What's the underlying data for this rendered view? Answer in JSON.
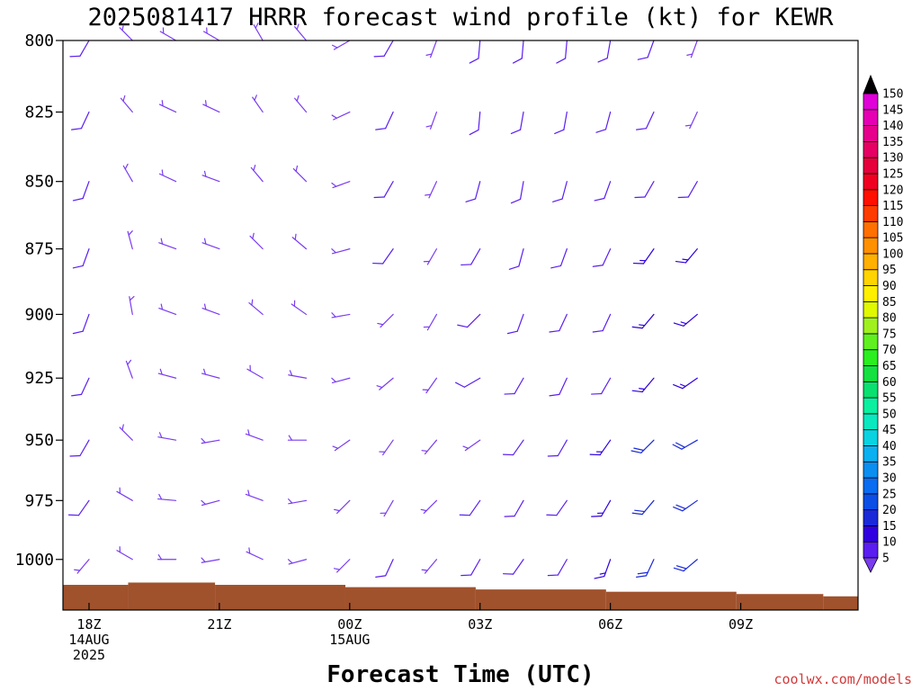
{
  "chart_data": {
    "type": "wind_barb_profile",
    "title": "2025081417 HRRR forecast wind profile (kt) for KEWR",
    "xlabel": "Forecast Time (UTC)",
    "ylabel": "",
    "credit": "coolwx.com/models",
    "y_axis": {
      "unit": "hPa",
      "ticks": [
        800,
        825,
        850,
        875,
        900,
        925,
        950,
        975,
        1000
      ],
      "range": [
        800,
        1022
      ]
    },
    "x_axis": {
      "unit": "hours from 18Z 14AUG 2025",
      "range": [
        -0.6,
        17.7
      ],
      "ticks": [
        {
          "hour": 0,
          "lines": [
            "18Z",
            "14AUG",
            "2025"
          ]
        },
        {
          "hour": 3,
          "lines": [
            "21Z"
          ]
        },
        {
          "hour": 6,
          "lines": [
            "00Z",
            "15AUG"
          ]
        },
        {
          "hour": 9,
          "lines": [
            "03Z"
          ]
        },
        {
          "hour": 12,
          "lines": [
            "06Z"
          ]
        },
        {
          "hour": 15,
          "lines": [
            "09Z"
          ]
        }
      ]
    },
    "colorbar": {
      "levels": [
        5,
        10,
        15,
        20,
        25,
        30,
        35,
        40,
        45,
        50,
        55,
        60,
        65,
        70,
        75,
        80,
        85,
        90,
        95,
        100,
        105,
        110,
        115,
        120,
        125,
        130,
        135,
        140,
        145,
        150
      ],
      "colors": [
        "#7a3cf0",
        "#5a1ef0",
        "#3000e0",
        "#1a2ad8",
        "#0a4ee6",
        "#0a6cf0",
        "#0a8ef0",
        "#0ab0f0",
        "#0ad2e0",
        "#0ae8c0",
        "#0af0a0",
        "#0ae070",
        "#14e040",
        "#2aee20",
        "#60f020",
        "#a0f020",
        "#e0f800",
        "#fff000",
        "#ffd400",
        "#ffb000",
        "#ff9000",
        "#ff7000",
        "#ff3c00",
        "#ff1000",
        "#f00020",
        "#e6003c",
        "#e60064",
        "#e6008c",
        "#e600b4",
        "#e000d8"
      ],
      "top_arrow_color": "#000000"
    },
    "columns": [
      {
        "hour": 0,
        "winds": [
          [
            800,
            210,
            10
          ],
          [
            825,
            205,
            10
          ],
          [
            850,
            200,
            10
          ],
          [
            875,
            200,
            10
          ],
          [
            900,
            200,
            10
          ],
          [
            925,
            205,
            10
          ],
          [
            950,
            210,
            10
          ],
          [
            975,
            215,
            10
          ],
          [
            1000,
            220,
            5
          ]
        ]
      },
      {
        "hour": 1,
        "winds": [
          [
            800,
            315,
            5
          ],
          [
            825,
            320,
            5
          ],
          [
            850,
            330,
            5
          ],
          [
            875,
            345,
            5
          ],
          [
            900,
            350,
            5
          ],
          [
            925,
            340,
            5
          ],
          [
            950,
            315,
            5
          ],
          [
            975,
            300,
            5
          ],
          [
            1000,
            300,
            5
          ]
        ]
      },
      {
        "hour": 2,
        "winds": [
          [
            800,
            300,
            5
          ],
          [
            825,
            295,
            5
          ],
          [
            850,
            295,
            5
          ],
          [
            875,
            290,
            5
          ],
          [
            900,
            290,
            5
          ],
          [
            925,
            285,
            5
          ],
          [
            950,
            280,
            5
          ],
          [
            975,
            275,
            5
          ],
          [
            1000,
            270,
            5
          ]
        ]
      },
      {
        "hour": 3,
        "winds": [
          [
            800,
            300,
            5
          ],
          [
            825,
            295,
            5
          ],
          [
            850,
            290,
            5
          ],
          [
            875,
            290,
            5
          ],
          [
            900,
            290,
            5
          ],
          [
            925,
            285,
            5
          ],
          [
            950,
            260,
            5
          ],
          [
            975,
            255,
            5
          ],
          [
            1000,
            260,
            5
          ]
        ]
      },
      {
        "hour": 4,
        "winds": [
          [
            800,
            330,
            5
          ],
          [
            825,
            325,
            5
          ],
          [
            850,
            320,
            5
          ],
          [
            875,
            315,
            5
          ],
          [
            900,
            310,
            5
          ],
          [
            925,
            300,
            5
          ],
          [
            950,
            290,
            5
          ],
          [
            975,
            290,
            5
          ],
          [
            1000,
            295,
            5
          ]
        ]
      },
      {
        "hour": 5,
        "winds": [
          [
            800,
            320,
            5
          ],
          [
            825,
            320,
            5
          ],
          [
            850,
            315,
            5
          ],
          [
            875,
            310,
            5
          ],
          [
            900,
            305,
            5
          ],
          [
            925,
            280,
            5
          ],
          [
            950,
            270,
            5
          ],
          [
            975,
            260,
            5
          ],
          [
            1000,
            255,
            5
          ]
        ]
      },
      {
        "hour": 6,
        "winds": [
          [
            800,
            240,
            5
          ],
          [
            825,
            245,
            5
          ],
          [
            850,
            250,
            5
          ],
          [
            875,
            255,
            5
          ],
          [
            900,
            260,
            5
          ],
          [
            925,
            255,
            5
          ],
          [
            950,
            235,
            5
          ],
          [
            975,
            225,
            5
          ],
          [
            1000,
            225,
            5
          ]
        ]
      },
      {
        "hour": 7,
        "winds": [
          [
            800,
            210,
            10
          ],
          [
            825,
            205,
            10
          ],
          [
            850,
            210,
            10
          ],
          [
            875,
            215,
            10
          ],
          [
            900,
            225,
            5
          ],
          [
            925,
            230,
            5
          ],
          [
            950,
            215,
            5
          ],
          [
            975,
            210,
            5
          ],
          [
            1000,
            205,
            10
          ]
        ]
      },
      {
        "hour": 8,
        "winds": [
          [
            800,
            200,
            5
          ],
          [
            825,
            200,
            5
          ],
          [
            850,
            205,
            5
          ],
          [
            875,
            210,
            5
          ],
          [
            900,
            210,
            5
          ],
          [
            925,
            215,
            5
          ],
          [
            950,
            220,
            5
          ],
          [
            975,
            225,
            5
          ],
          [
            1000,
            220,
            5
          ]
        ]
      },
      {
        "hour": 9,
        "winds": [
          [
            800,
            185,
            10
          ],
          [
            825,
            185,
            10
          ],
          [
            850,
            195,
            10
          ],
          [
            875,
            210,
            10
          ],
          [
            900,
            225,
            10
          ],
          [
            925,
            240,
            10
          ],
          [
            950,
            235,
            5
          ],
          [
            975,
            215,
            10
          ],
          [
            1000,
            210,
            10
          ]
        ]
      },
      {
        "hour": 10,
        "winds": [
          [
            800,
            185,
            10
          ],
          [
            825,
            190,
            10
          ],
          [
            850,
            190,
            10
          ],
          [
            875,
            195,
            10
          ],
          [
            900,
            200,
            10
          ],
          [
            925,
            210,
            10
          ],
          [
            950,
            215,
            10
          ],
          [
            975,
            210,
            10
          ],
          [
            1000,
            215,
            10
          ]
        ]
      },
      {
        "hour": 11,
        "winds": [
          [
            800,
            185,
            10
          ],
          [
            825,
            190,
            10
          ],
          [
            850,
            195,
            10
          ],
          [
            875,
            200,
            10
          ],
          [
            900,
            205,
            10
          ],
          [
            925,
            205,
            10
          ],
          [
            950,
            210,
            10
          ],
          [
            975,
            215,
            10
          ],
          [
            1000,
            210,
            10
          ]
        ]
      },
      {
        "hour": 12,
        "winds": [
          [
            800,
            190,
            10
          ],
          [
            825,
            195,
            10
          ],
          [
            850,
            200,
            10
          ],
          [
            875,
            205,
            10
          ],
          [
            900,
            205,
            10
          ],
          [
            925,
            210,
            10
          ],
          [
            950,
            215,
            15
          ],
          [
            975,
            210,
            15
          ],
          [
            1000,
            200,
            15
          ]
        ]
      },
      {
        "hour": 13,
        "winds": [
          [
            800,
            200,
            10
          ],
          [
            825,
            205,
            10
          ],
          [
            850,
            210,
            10
          ],
          [
            875,
            215,
            15
          ],
          [
            900,
            220,
            15
          ],
          [
            925,
            220,
            15
          ],
          [
            950,
            225,
            20
          ],
          [
            975,
            220,
            20
          ],
          [
            1000,
            205,
            20
          ]
        ]
      },
      {
        "hour": 14,
        "winds": [
          [
            800,
            200,
            5
          ],
          [
            825,
            205,
            5
          ],
          [
            850,
            210,
            10
          ],
          [
            875,
            220,
            15
          ],
          [
            900,
            230,
            15
          ],
          [
            925,
            235,
            15
          ],
          [
            950,
            240,
            20
          ],
          [
            975,
            235,
            20
          ],
          [
            1000,
            230,
            20
          ]
        ]
      }
    ],
    "surface_steps": [
      {
        "x0": -0.6,
        "x1": 0.9,
        "p": 1011
      },
      {
        "x0": 0.9,
        "x1": 2.9,
        "p": 1010
      },
      {
        "x0": 2.9,
        "x1": 5.9,
        "p": 1011
      },
      {
        "x0": 5.9,
        "x1": 8.9,
        "p": 1012
      },
      {
        "x0": 8.9,
        "x1": 11.9,
        "p": 1013
      },
      {
        "x0": 11.9,
        "x1": 14.9,
        "p": 1014
      },
      {
        "x0": 14.9,
        "x1": 16.9,
        "p": 1015
      },
      {
        "x0": 16.9,
        "x1": 17.7,
        "p": 1016
      }
    ],
    "surface_color": "#a0522d",
    "grid": false
  }
}
